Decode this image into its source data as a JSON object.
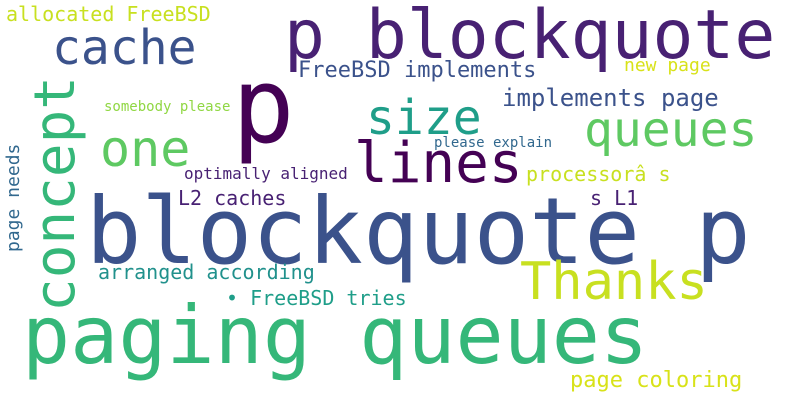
{
  "words": {
    "p": "p",
    "p_blockquote": "p blockquote",
    "cache": "cache",
    "allocated_freebsd": "allocated FreeBSD",
    "freebsd_implements": "FreeBSD implements",
    "new_page": "new page",
    "implements_page": "implements page",
    "size": "size",
    "queues": "queues",
    "concept": "concept",
    "somebody_please": "somebody please",
    "one": "one",
    "please_explain": "please explain",
    "lines": "lines",
    "optimally_aligned": "optimally aligned",
    "processor_s": "processorâ s",
    "page_needs": "page needs",
    "l2_caches": "L2 caches",
    "s_l1": "s L1",
    "blockquote_p": "blockquote p",
    "arranged_according": "arranged according",
    "thanks": "Thanks",
    "freebsd_tries": "• FreeBSD tries",
    "paging_queues": "paging queues",
    "page_coloring": "page coloring"
  }
}
